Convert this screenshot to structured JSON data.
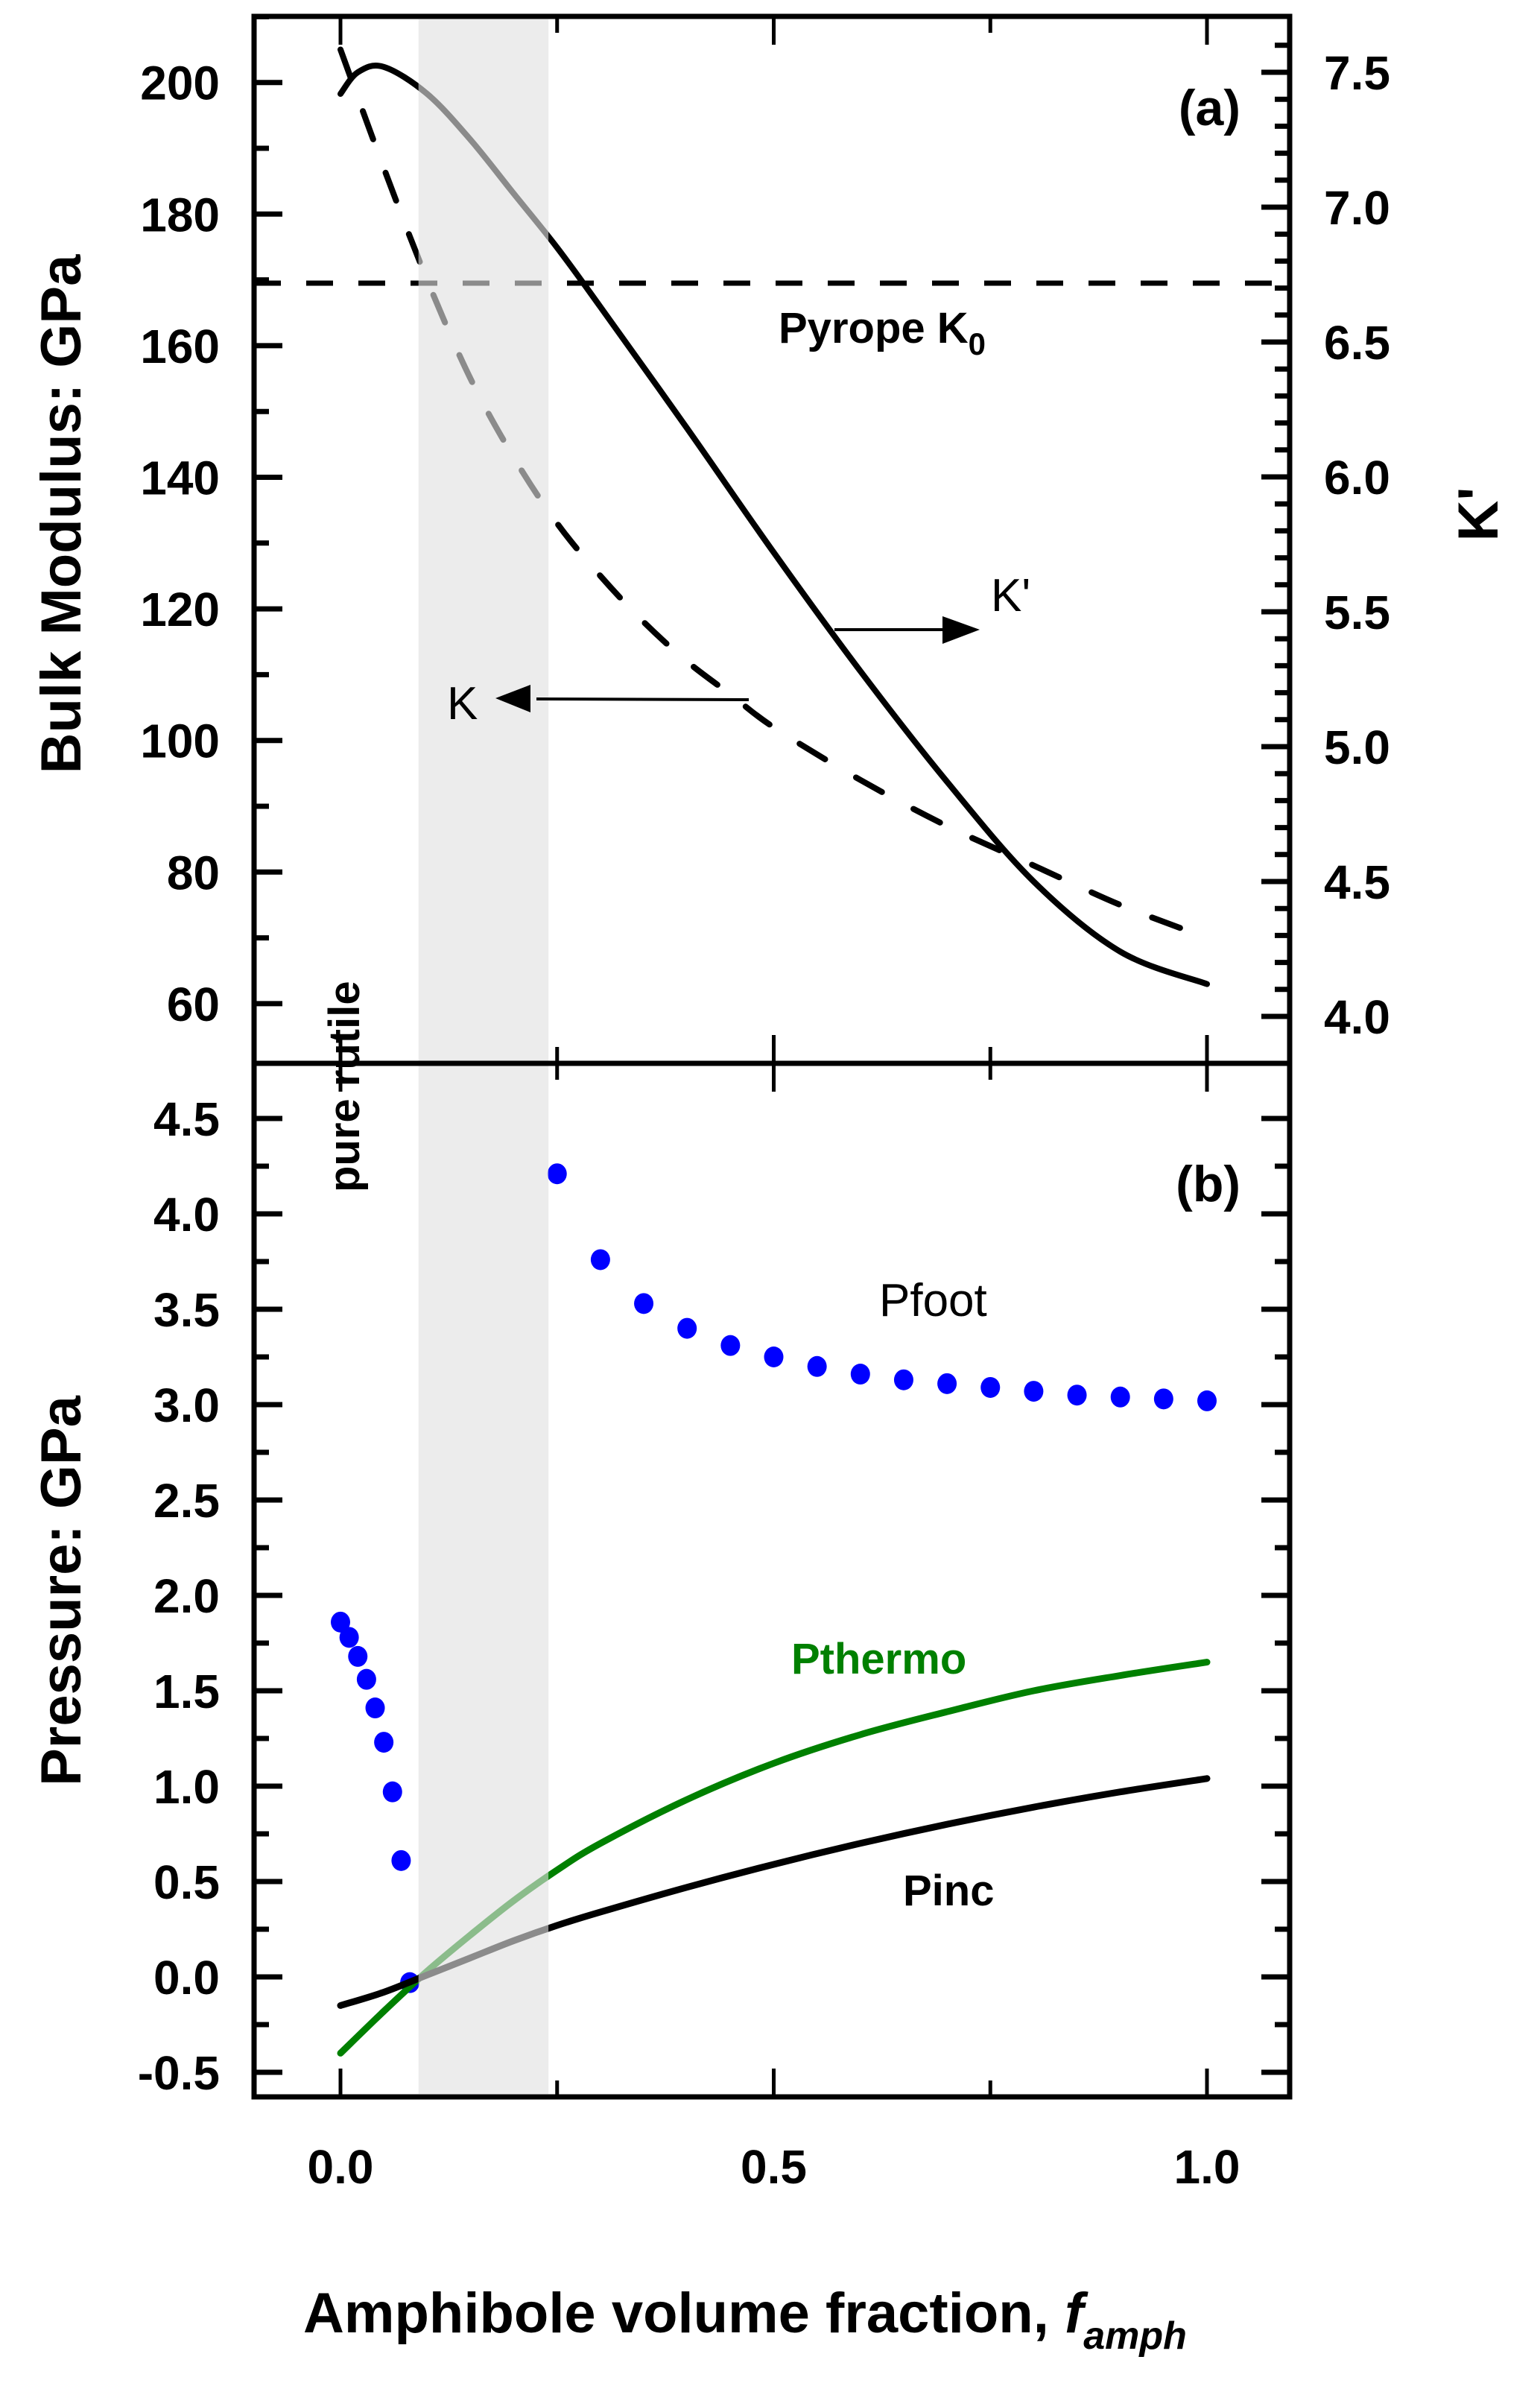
{
  "chart_data": [
    {
      "panel": "(a)",
      "type": "line",
      "xlabel": "Amphibole volume fraction, f_amph",
      "xlim": [
        -0.1,
        1.1
      ],
      "x_ticks": [
        0.0,
        0.25,
        0.5,
        0.75,
        1.0
      ],
      "ylabel_left": "Bulk Modulus: GPa",
      "ylim_left": [
        51.6,
        210
      ],
      "y_ticks_left": [
        "60",
        "80",
        "100",
        "120",
        "140",
        "160",
        "180",
        "200"
      ],
      "ylabel_right": "K'",
      "ylim_right": [
        3.85,
        7.65
      ],
      "y_ticks_right": [
        "4.0",
        "4.5",
        "5.0",
        "5.5",
        "6.0",
        "6.5",
        "7.0",
        "7.5"
      ],
      "grid": false,
      "series": [
        {
          "name": "K",
          "axis": "left",
          "style": "dashed",
          "color": "#000000",
          "x": [
            0.0,
            0.05,
            0.1,
            0.15,
            0.2,
            0.25,
            0.3,
            0.35,
            0.4,
            0.45,
            0.5,
            0.6,
            0.7,
            0.8,
            0.9,
            1.0
          ],
          "values": [
            205,
            187,
            170,
            155,
            143,
            133,
            125,
            118,
            112,
            107,
            102,
            94,
            87,
            81,
            75,
            70
          ]
        },
        {
          "name": "K'",
          "axis": "right",
          "style": "solid",
          "color": "#000000",
          "x": [
            0.0,
            0.02,
            0.05,
            0.1,
            0.15,
            0.2,
            0.25,
            0.3,
            0.4,
            0.5,
            0.6,
            0.7,
            0.8,
            0.9,
            1.0
          ],
          "values": [
            7.42,
            7.5,
            7.52,
            7.42,
            7.25,
            7.05,
            6.85,
            6.63,
            6.18,
            5.72,
            5.28,
            4.87,
            4.5,
            4.24,
            4.12
          ]
        },
        {
          "name": "Pyrope K0",
          "axis": "left",
          "style": "dashed",
          "color": "#000000",
          "constant": 169.5
        }
      ],
      "annotations": {
        "panel_label": "(a)",
        "pyrope_label": "Pyrope K",
        "pyrope_subscript": "0",
        "k_label": "K",
        "kprime_label": "K'",
        "pure_rutile": "pure rutile"
      },
      "shaded_region": {
        "x": [
          0.09,
          0.24
        ],
        "color": "#e0e0e0"
      }
    },
    {
      "panel": "(b)",
      "type": "line",
      "xlabel": "Amphibole volume fraction, f_amph",
      "xlim": [
        -0.1,
        1.1
      ],
      "x_ticks": [
        "0.0",
        "0.5",
        "1.0"
      ],
      "ylabel": "Pressure: GPa",
      "ylim": [
        -0.7,
        4.7
      ],
      "y_ticks": [
        "-0.5",
        "0.0",
        "0.5",
        "1.0",
        "1.5",
        "2.0",
        "2.5",
        "3.0",
        "3.5",
        "4.0",
        "4.5"
      ],
      "grid": false,
      "series": [
        {
          "name": "Pfoot",
          "style": "scatter",
          "color": "#0000ff",
          "x": [
            0.0,
            0.01,
            0.02,
            0.03,
            0.04,
            0.05,
            0.06,
            0.07,
            0.08,
            0.25,
            0.3,
            0.35,
            0.4,
            0.45,
            0.5,
            0.55,
            0.6,
            0.65,
            0.7,
            0.75,
            0.8,
            0.85,
            0.9,
            0.95,
            1.0
          ],
          "values": [
            1.86,
            1.78,
            1.68,
            1.56,
            1.41,
            1.23,
            0.97,
            0.61,
            -0.03,
            4.21,
            3.76,
            3.53,
            3.4,
            3.31,
            3.25,
            3.2,
            3.16,
            3.13,
            3.11,
            3.09,
            3.07,
            3.05,
            3.04,
            3.03,
            3.02
          ]
        },
        {
          "name": "Pthermo",
          "style": "solid",
          "color": "#008000",
          "x": [
            0.0,
            0.05,
            0.1,
            0.15,
            0.2,
            0.25,
            0.3,
            0.4,
            0.5,
            0.6,
            0.7,
            0.8,
            0.9,
            1.0
          ],
          "values": [
            -0.4,
            -0.18,
            0.03,
            0.22,
            0.4,
            0.56,
            0.7,
            0.93,
            1.12,
            1.27,
            1.39,
            1.5,
            1.58,
            1.65
          ]
        },
        {
          "name": "Pinc",
          "style": "solid",
          "color": "#000000",
          "x": [
            0.0,
            0.05,
            0.1,
            0.15,
            0.2,
            0.25,
            0.3,
            0.4,
            0.5,
            0.6,
            0.7,
            0.8,
            0.9,
            1.0
          ],
          "values": [
            -0.15,
            -0.08,
            0.01,
            0.1,
            0.19,
            0.27,
            0.34,
            0.47,
            0.59,
            0.7,
            0.8,
            0.89,
            0.97,
            1.04
          ]
        }
      ],
      "annotations": {
        "panel_label": "(b)",
        "pfoot_label": "Pfoot",
        "pthermo_label": "Pthermo",
        "pinc_label": "Pinc"
      },
      "shaded_region": {
        "x": [
          0.09,
          0.24
        ],
        "color": "#e0e0e0"
      }
    }
  ],
  "axis_titles": {
    "x": "Amphibole volume fraction, ",
    "x_italic": "f",
    "x_italic_sub": "amph",
    "y_top": "Bulk Modulus: GPa",
    "y_right": "K'",
    "y_bottom": "Pressure: GPa"
  },
  "colors": {
    "pfoot": "#0000ff",
    "pthermo": "#008000",
    "pinc": "#000000",
    "shade": "#e0e0e0"
  }
}
